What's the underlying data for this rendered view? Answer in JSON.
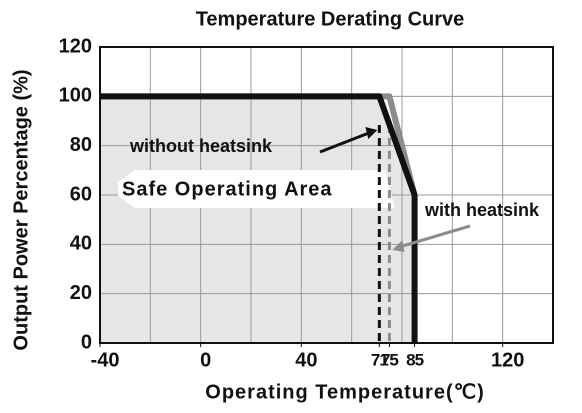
{
  "chart_data": {
    "type": "line",
    "title": "Temperature Derating Curve",
    "xlabel": "Operating Temperature(℃)",
    "ylabel": "Output Power Percentage (%)",
    "annotation": "Safe Operating Area",
    "series": [
      {
        "name": "without heatsink",
        "color": "#111111",
        "x": [
          -40,
          71,
          85,
          85
        ],
        "values": [
          100,
          100,
          60,
          0
        ]
      },
      {
        "name": "with heatsink",
        "color": "#8c8c8c",
        "x": [
          -40,
          75,
          85
        ],
        "values": [
          100,
          100,
          60
        ]
      }
    ],
    "reference_lines": [
      {
        "x": 71,
        "color": "#111111"
      },
      {
        "x": 75,
        "color": "#8c8c8c"
      }
    ],
    "xlim": [
      -40,
      140
    ],
    "ylim": [
      0,
      120
    ],
    "xticks": [
      -40,
      0,
      40,
      71,
      75,
      85,
      120
    ],
    "xgrid": [
      -20,
      0,
      20,
      40,
      60,
      80,
      100,
      120
    ],
    "yticks": [
      0,
      20,
      40,
      60,
      80,
      100,
      120
    ],
    "grid": true
  }
}
